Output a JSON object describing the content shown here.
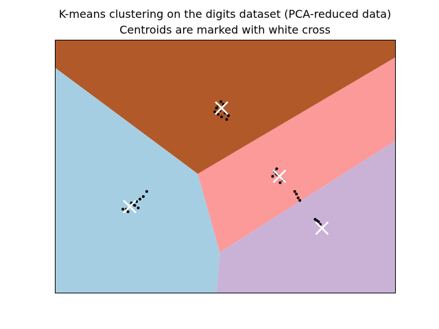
{
  "chart_data": {
    "type": "scatter",
    "title": "K-means clustering on the digits dataset (PCA-reduced data)",
    "subtitle": "Centroids are marked with white cross",
    "xlabel": "",
    "ylabel": "",
    "xlim": [
      0,
      10
    ],
    "ylim": [
      0,
      10
    ],
    "xticks": [],
    "yticks": [],
    "grid": false,
    "background_regions": [
      {
        "label": "cluster-brown",
        "color": "#b15928",
        "polygon": [
          [
            0,
            10
          ],
          [
            10,
            10
          ],
          [
            10,
            9.3
          ],
          [
            4.2,
            4.7
          ],
          [
            0,
            8.9
          ]
        ]
      },
      {
        "label": "cluster-light-blue",
        "color": "#a6cee3",
        "polygon": [
          [
            0,
            8.9
          ],
          [
            4.2,
            4.7
          ],
          [
            4.85,
            1.6
          ],
          [
            4.75,
            0
          ],
          [
            0,
            0
          ]
        ]
      },
      {
        "label": "cluster-pink",
        "color": "#fb9a99",
        "polygon": [
          [
            4.2,
            4.7
          ],
          [
            10,
            9.3
          ],
          [
            10,
            6.0
          ],
          [
            4.85,
            1.6
          ]
        ]
      },
      {
        "label": "cluster-lavender",
        "color": "#cab2d6",
        "polygon": [
          [
            4.85,
            1.6
          ],
          [
            10,
            6.0
          ],
          [
            10,
            0
          ],
          [
            4.75,
            0
          ]
        ]
      }
    ],
    "points": [
      {
        "x": 4.8,
        "y": 7.4
      },
      {
        "x": 4.9,
        "y": 7.3
      },
      {
        "x": 4.85,
        "y": 7.2
      },
      {
        "x": 4.75,
        "y": 7.3
      },
      {
        "x": 5.0,
        "y": 7.1
      },
      {
        "x": 4.95,
        "y": 7.45
      },
      {
        "x": 4.7,
        "y": 7.15
      },
      {
        "x": 5.05,
        "y": 6.85
      },
      {
        "x": 4.9,
        "y": 6.95
      },
      {
        "x": 4.8,
        "y": 7.05
      },
      {
        "x": 5.1,
        "y": 7.0
      },
      {
        "x": 4.88,
        "y": 7.55
      },
      {
        "x": 2.3,
        "y": 3.5
      },
      {
        "x": 2.2,
        "y": 3.4
      },
      {
        "x": 2.4,
        "y": 3.6
      },
      {
        "x": 2.1,
        "y": 3.3
      },
      {
        "x": 2.35,
        "y": 3.45
      },
      {
        "x": 2.25,
        "y": 3.55
      },
      {
        "x": 2.5,
        "y": 3.7
      },
      {
        "x": 2.15,
        "y": 3.2
      },
      {
        "x": 2.45,
        "y": 3.35
      },
      {
        "x": 2.6,
        "y": 3.8
      },
      {
        "x": 2.7,
        "y": 4.0
      },
      {
        "x": 2.0,
        "y": 3.3
      },
      {
        "x": 6.5,
        "y": 4.7
      },
      {
        "x": 6.6,
        "y": 4.6
      },
      {
        "x": 6.45,
        "y": 4.8
      },
      {
        "x": 6.7,
        "y": 4.45
      },
      {
        "x": 6.55,
        "y": 4.65
      },
      {
        "x": 6.62,
        "y": 4.35
      },
      {
        "x": 6.4,
        "y": 4.6
      },
      {
        "x": 6.52,
        "y": 4.9
      },
      {
        "x": 7.1,
        "y": 3.9
      },
      {
        "x": 7.15,
        "y": 3.75
      },
      {
        "x": 7.2,
        "y": 3.65
      },
      {
        "x": 7.05,
        "y": 4.0
      },
      {
        "x": 7.65,
        "y": 2.9
      },
      {
        "x": 7.75,
        "y": 2.8
      },
      {
        "x": 7.8,
        "y": 2.7
      },
      {
        "x": 7.7,
        "y": 2.85
      }
    ],
    "centroids": [
      {
        "x": 4.9,
        "y": 7.3
      },
      {
        "x": 2.2,
        "y": 3.4
      },
      {
        "x": 6.6,
        "y": 4.6
      },
      {
        "x": 7.85,
        "y": 2.55
      }
    ]
  }
}
